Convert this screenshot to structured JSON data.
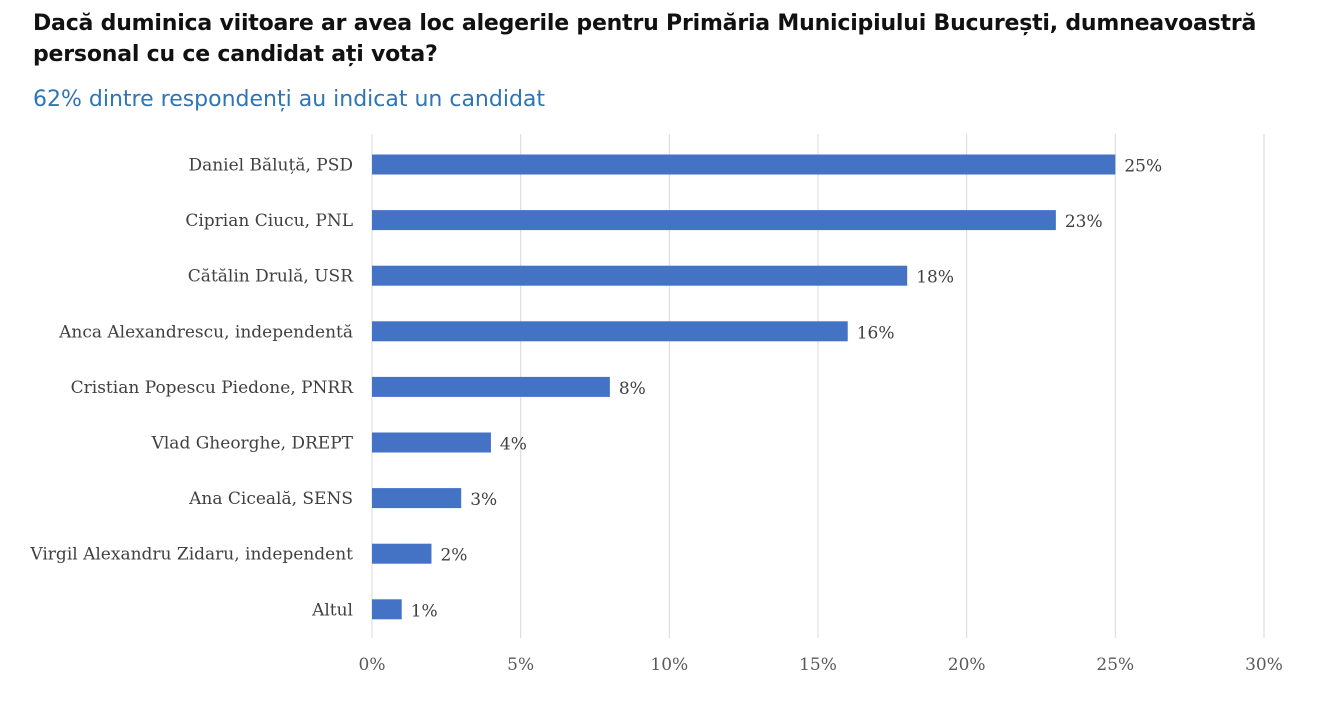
{
  "title": "Dacă duminica viitoare ar avea loc alegerile pentru Primăria Municipiului București, dumneavoastră personal cu ce candidat ați vota?",
  "subtitle": "62% dintre respondenți au indicat un candidat",
  "colors": {
    "bar": "#4472c4",
    "grid": "#d9d9d9",
    "subtitle": "#2e75b6"
  },
  "chart_data": {
    "type": "bar",
    "orientation": "horizontal",
    "categories": [
      "Daniel Băluță, PSD",
      "Ciprian Ciucu, PNL",
      "Cătălin Drulă, USR",
      "Anca Alexandrescu, independentă",
      "Cristian Popescu Piedone, PNRR",
      "Vlad Gheorghe, DREPT",
      "Ana Ciceală, SENS",
      "Virgil Alexandru Zidaru, independent",
      "Altul"
    ],
    "values": [
      25,
      23,
      18,
      16,
      8,
      4,
      3,
      2,
      1
    ],
    "value_labels": [
      "25%",
      "23%",
      "18%",
      "16%",
      "8%",
      "4%",
      "3%",
      "2%",
      "1%"
    ],
    "xlim": [
      0,
      30
    ],
    "xticks": [
      0,
      5,
      10,
      15,
      20,
      25,
      30
    ],
    "xtick_labels": [
      "0%",
      "5%",
      "10%",
      "15%",
      "20%",
      "25%",
      "30%"
    ],
    "xlabel": "",
    "ylabel": "",
    "grid": true,
    "legend": "none"
  }
}
